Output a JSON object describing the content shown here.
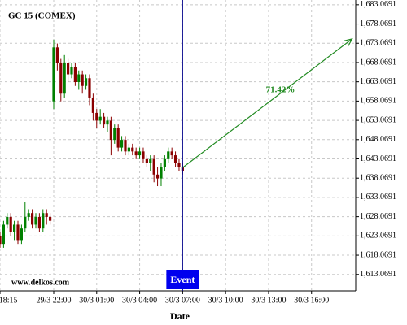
{
  "chart_data": {
    "type": "candlestick",
    "title": "GC 15 (COMEX)",
    "watermark": "www.delkos.com",
    "x_label": "Date",
    "x": [
      "29/3 18:15",
      "29/3 18:30",
      "29/3 18:45",
      "29/3 19:00",
      "29/3 19:15",
      "29/3 19:30",
      "29/3 19:45",
      "29/3 20:00",
      "29/3 20:15",
      "29/3 20:30",
      "29/3 20:45",
      "29/3 21:00",
      "29/3 21:15",
      "29/3 21:30",
      "29/3 21:45",
      "29/3 22:00",
      "29/3 22:15",
      "29/3 22:30",
      "29/3 22:45",
      "29/3 23:00",
      "29/3 23:15",
      "29/3 23:30",
      "29/3 23:45",
      "30/3 00:00",
      "30/3 00:15",
      "30/3 00:30",
      "30/3 00:45",
      "30/3 01:00",
      "30/3 01:15",
      "30/3 01:30",
      "30/3 01:45",
      "30/3 02:00",
      "30/3 02:15",
      "30/3 02:30",
      "30/3 02:45",
      "30/3 03:00",
      "30/3 03:15",
      "30/3 03:30",
      "30/3 03:45",
      "30/3 04:00",
      "30/3 04:15",
      "30/3 04:30",
      "30/3 04:45",
      "30/3 05:00",
      "30/3 05:15",
      "30/3 05:30",
      "30/3 05:45",
      "30/3 06:00",
      "30/3 06:15",
      "30/3 06:30",
      "30/3 06:45",
      "30/3 07:00"
    ],
    "open": [
      1623,
      1621,
      1626,
      1628,
      1624,
      1626,
      1622,
      1625,
      1628,
      1629,
      1626,
      1628,
      1625,
      1629,
      1628,
      1658,
      1672,
      1668,
      1660,
      1668,
      1665,
      1667,
      1663,
      1665,
      1662,
      1664,
      1659,
      1655,
      1653,
      1654,
      1652,
      1653,
      1648,
      1651,
      1646,
      1648,
      1645,
      1646,
      1645,
      1644,
      1645,
      1643,
      1642,
      1643,
      1639,
      1638,
      1641,
      1643,
      1645,
      1644,
      1642,
      1641
    ],
    "high": [
      1624,
      1627,
      1629,
      1629,
      1627,
      1627,
      1626,
      1632,
      1630,
      1630,
      1629,
      1629,
      1630,
      1630,
      1629,
      1674,
      1673,
      1669,
      1670,
      1669,
      1668,
      1668,
      1666,
      1666,
      1665,
      1665,
      1660,
      1656,
      1656,
      1655,
      1654,
      1654,
      1652,
      1652,
      1649,
      1649,
      1647,
      1647,
      1646,
      1646,
      1646,
      1644,
      1644,
      1644,
      1641,
      1642,
      1644,
      1646,
      1646,
      1645,
      1643,
      1642
    ],
    "low": [
      1620,
      1620,
      1625,
      1623,
      1622,
      1621,
      1621,
      1624,
      1627,
      1625,
      1625,
      1624,
      1624,
      1626,
      1626,
      1656,
      1666,
      1658,
      1659,
      1663,
      1664,
      1662,
      1661,
      1660,
      1661,
      1657,
      1653,
      1651,
      1652,
      1651,
      1650,
      1644,
      1647,
      1645,
      1645,
      1644,
      1644,
      1644,
      1643,
      1643,
      1642,
      1641,
      1640,
      1637,
      1636,
      1636,
      1640,
      1642,
      1643,
      1641,
      1640,
      1639
    ],
    "close": [
      1621,
      1626,
      1628,
      1624,
      1626,
      1622,
      1625,
      1628,
      1629,
      1626,
      1628,
      1625,
      1629,
      1628,
      1627,
      1672,
      1668,
      1660,
      1668,
      1665,
      1667,
      1663,
      1665,
      1662,
      1664,
      1659,
      1655,
      1653,
      1654,
      1652,
      1653,
      1648,
      1651,
      1646,
      1648,
      1645,
      1646,
      1645,
      1644,
      1645,
      1643,
      1642,
      1643,
      1639,
      1638,
      1641,
      1643,
      1645,
      1644,
      1642,
      1641,
      1640
    ],
    "up_color": "#008000",
    "down_color": "#8b0000",
    "xlim": [
      "29/3 18:15",
      "30/3 19:05"
    ],
    "xticks": [
      "29/3 18:15",
      "29/3 22:00",
      "30/3 01:00",
      "30/3 04:00",
      "30/3 07:00",
      "30/3 10:00",
      "30/3 13:00",
      "30/3 16:00"
    ],
    "ylim": [
      1608.8,
      1684.3
    ],
    "yticks": [
      {
        "value": 1613.0691,
        "label": "1,613.0691"
      },
      {
        "value": 1618.0691,
        "label": "1,618.0691"
      },
      {
        "value": 1623.0691,
        "label": "1,623.0691"
      },
      {
        "value": 1628.0691,
        "label": "1,628.0691"
      },
      {
        "value": 1633.0691,
        "label": "1,633.0691"
      },
      {
        "value": 1638.0691,
        "label": "1,638.0691"
      },
      {
        "value": 1643.0691,
        "label": "1,643.0691"
      },
      {
        "value": 1648.0691,
        "label": "1,648.0691"
      },
      {
        "value": 1653.0691,
        "label": "1,653.0691"
      },
      {
        "value": 1658.0691,
        "label": "1,658.0691"
      },
      {
        "value": 1663.0691,
        "label": "1,663.0691"
      },
      {
        "value": 1668.0691,
        "label": "1,668.0691"
      },
      {
        "value": 1673.0691,
        "label": "1,673.0691"
      },
      {
        "value": 1678.0691,
        "label": "1,678.0691"
      },
      {
        "value": 1683.0691,
        "label": "1,683.0691"
      }
    ],
    "grid": true,
    "event": {
      "x": "30/3 07:00",
      "label": "Event",
      "color": "#0000ee"
    },
    "projection": {
      "x": [
        "30/3 07:00",
        "30/3 18:50"
      ],
      "y": [
        1640.8,
        1674.2
      ],
      "label": "71.42%",
      "color": "#228b22"
    }
  }
}
